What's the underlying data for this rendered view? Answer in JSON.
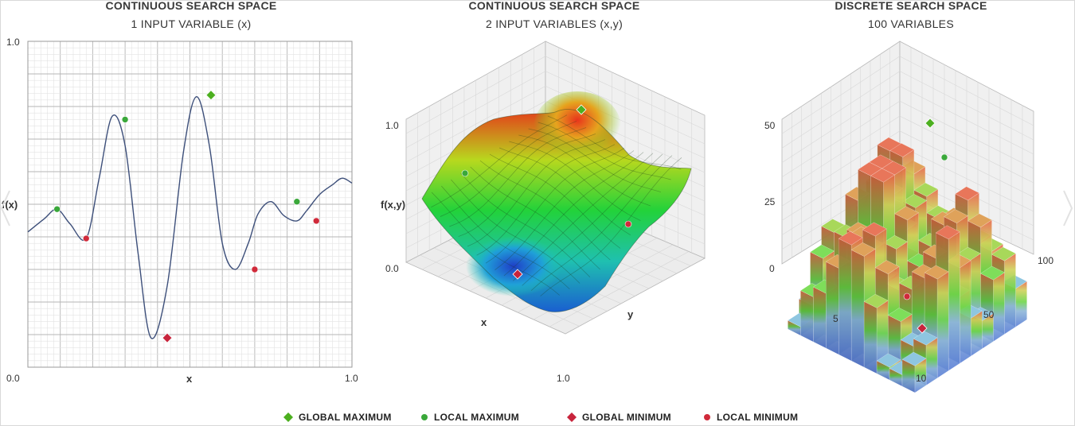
{
  "panels": [
    {
      "title": "CONTINUOUS SEARCH SPACE",
      "subtitle": "1 INPUT VARIABLE (x)",
      "xlabel": "x",
      "ylabel": "f(x)",
      "x_ticks": [
        "0.0",
        "1.0"
      ],
      "y_ticks": [
        "1.0"
      ]
    },
    {
      "title": "CONTINUOUS SEARCH SPACE",
      "subtitle": "2 INPUT VARIABLES (x,y)",
      "xlabel": "x",
      "ylabel": "y",
      "zlabel": "f(x,y)",
      "z_ticks": [
        "1.0",
        "0.0"
      ],
      "xy_tick": "1.0"
    },
    {
      "title": "DISCRETE SEARCH SPACE",
      "subtitle": "100 VARIABLES",
      "z_ticks": [
        "50",
        "25",
        "0"
      ],
      "x_ticks": [
        "5",
        "10"
      ],
      "y_ticks": [
        "50",
        "100"
      ]
    }
  ],
  "legend": [
    {
      "label": "GLOBAL MAXIMUM",
      "marker": "diamond",
      "color": "#4caf1f"
    },
    {
      "label": "LOCAL MAXIMUM",
      "marker": "circle",
      "color": "#3aa83a"
    },
    {
      "label": "GLOBAL MINIMUM",
      "marker": "diamond",
      "color": "#c8243c"
    },
    {
      "label": "LOCAL MINIMUM",
      "marker": "circle",
      "color": "#d02a3a"
    }
  ],
  "colors": {
    "curve": "#3d4f7a",
    "grid_major": "#b5b5b5",
    "grid_minor": "#e3e3e3",
    "max_green": "#4caf1f",
    "min_red": "#c8243c"
  },
  "chart_data": [
    {
      "type": "line",
      "title": "CONTINUOUS SEARCH SPACE",
      "subtitle": "1 INPUT VARIABLE (x)",
      "xlabel": "x",
      "ylabel": "f(x)",
      "xlim": [
        0,
        1
      ],
      "ylim": [
        0,
        1
      ],
      "grid": true,
      "x": [
        0.0,
        0.05,
        0.09,
        0.13,
        0.18,
        0.22,
        0.26,
        0.3,
        0.34,
        0.38,
        0.43,
        0.48,
        0.52,
        0.56,
        0.6,
        0.64,
        0.68,
        0.71,
        0.75,
        0.79,
        0.83,
        0.86,
        0.9,
        0.94,
        0.97,
        1.0
      ],
      "y": [
        0.415,
        0.455,
        0.485,
        0.44,
        0.395,
        0.58,
        0.77,
        0.68,
        0.35,
        0.09,
        0.25,
        0.66,
        0.83,
        0.68,
        0.38,
        0.3,
        0.38,
        0.47,
        0.508,
        0.465,
        0.449,
        0.48,
        0.53,
        0.56,
        0.58,
        0.565
      ],
      "points": [
        {
          "kind": "global_max",
          "x": 0.565,
          "y": 0.835
        },
        {
          "kind": "local_max",
          "x": 0.09,
          "y": 0.485
        },
        {
          "kind": "local_max",
          "x": 0.3,
          "y": 0.76
        },
        {
          "kind": "local_max",
          "x": 0.83,
          "y": 0.508
        },
        {
          "kind": "global_min",
          "x": 0.43,
          "y": 0.09
        },
        {
          "kind": "local_min",
          "x": 0.18,
          "y": 0.395
        },
        {
          "kind": "local_min",
          "x": 0.7,
          "y": 0.3
        },
        {
          "kind": "local_min",
          "x": 0.89,
          "y": 0.449
        }
      ]
    },
    {
      "type": "surface",
      "title": "CONTINUOUS SEARCH SPACE",
      "subtitle": "2 INPUT VARIABLES (x,y)",
      "xlabel": "x",
      "ylabel": "y",
      "zlabel": "f(x,y)",
      "zlim": [
        0,
        1
      ],
      "points": [
        {
          "kind": "global_max",
          "x": 0.6,
          "y": 0.25,
          "z": 1.0
        },
        {
          "kind": "local_max",
          "x": 0.2,
          "y": 0.05,
          "z": 0.65
        },
        {
          "kind": "global_min",
          "x": 0.7,
          "y": 0.1,
          "z": 0.05
        },
        {
          "kind": "local_min",
          "x": 0.75,
          "y": 0.75,
          "z": 0.4
        }
      ]
    },
    {
      "type": "bar3d",
      "title": "DISCRETE SEARCH SPACE",
      "subtitle": "100 VARIABLES",
      "zlim": [
        0,
        50
      ],
      "points": [
        {
          "kind": "global_max",
          "z": 50
        },
        {
          "kind": "local_max",
          "z": 42
        },
        {
          "kind": "global_min",
          "z": 3
        },
        {
          "kind": "local_min",
          "z": 8
        }
      ]
    }
  ]
}
